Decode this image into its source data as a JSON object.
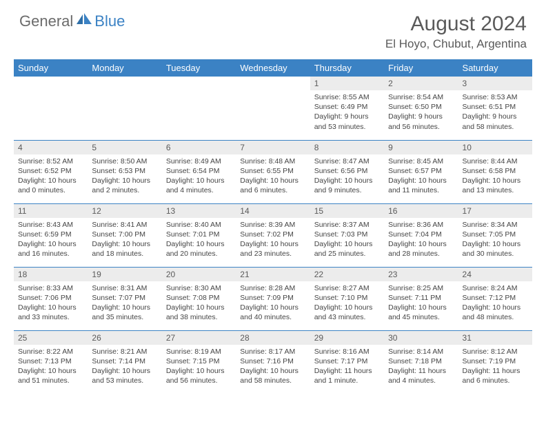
{
  "brand": {
    "name_gray": "General",
    "name_blue": "Blue"
  },
  "title": "August 2024",
  "location": "El Hoyo, Chubut, Argentina",
  "weekdays": [
    "Sunday",
    "Monday",
    "Tuesday",
    "Wednesday",
    "Thursday",
    "Friday",
    "Saturday"
  ],
  "header_bg": "#3b82c4",
  "daynum_bg": "#ececec",
  "weeks": [
    [
      {
        "n": "",
        "sr": "",
        "ss": "",
        "dl": ""
      },
      {
        "n": "",
        "sr": "",
        "ss": "",
        "dl": ""
      },
      {
        "n": "",
        "sr": "",
        "ss": "",
        "dl": ""
      },
      {
        "n": "",
        "sr": "",
        "ss": "",
        "dl": ""
      },
      {
        "n": "1",
        "sr": "Sunrise: 8:55 AM",
        "ss": "Sunset: 6:49 PM",
        "dl": "Daylight: 9 hours and 53 minutes."
      },
      {
        "n": "2",
        "sr": "Sunrise: 8:54 AM",
        "ss": "Sunset: 6:50 PM",
        "dl": "Daylight: 9 hours and 56 minutes."
      },
      {
        "n": "3",
        "sr": "Sunrise: 8:53 AM",
        "ss": "Sunset: 6:51 PM",
        "dl": "Daylight: 9 hours and 58 minutes."
      }
    ],
    [
      {
        "n": "4",
        "sr": "Sunrise: 8:52 AM",
        "ss": "Sunset: 6:52 PM",
        "dl": "Daylight: 10 hours and 0 minutes."
      },
      {
        "n": "5",
        "sr": "Sunrise: 8:50 AM",
        "ss": "Sunset: 6:53 PM",
        "dl": "Daylight: 10 hours and 2 minutes."
      },
      {
        "n": "6",
        "sr": "Sunrise: 8:49 AM",
        "ss": "Sunset: 6:54 PM",
        "dl": "Daylight: 10 hours and 4 minutes."
      },
      {
        "n": "7",
        "sr": "Sunrise: 8:48 AM",
        "ss": "Sunset: 6:55 PM",
        "dl": "Daylight: 10 hours and 6 minutes."
      },
      {
        "n": "8",
        "sr": "Sunrise: 8:47 AM",
        "ss": "Sunset: 6:56 PM",
        "dl": "Daylight: 10 hours and 9 minutes."
      },
      {
        "n": "9",
        "sr": "Sunrise: 8:45 AM",
        "ss": "Sunset: 6:57 PM",
        "dl": "Daylight: 10 hours and 11 minutes."
      },
      {
        "n": "10",
        "sr": "Sunrise: 8:44 AM",
        "ss": "Sunset: 6:58 PM",
        "dl": "Daylight: 10 hours and 13 minutes."
      }
    ],
    [
      {
        "n": "11",
        "sr": "Sunrise: 8:43 AM",
        "ss": "Sunset: 6:59 PM",
        "dl": "Daylight: 10 hours and 16 minutes."
      },
      {
        "n": "12",
        "sr": "Sunrise: 8:41 AM",
        "ss": "Sunset: 7:00 PM",
        "dl": "Daylight: 10 hours and 18 minutes."
      },
      {
        "n": "13",
        "sr": "Sunrise: 8:40 AM",
        "ss": "Sunset: 7:01 PM",
        "dl": "Daylight: 10 hours and 20 minutes."
      },
      {
        "n": "14",
        "sr": "Sunrise: 8:39 AM",
        "ss": "Sunset: 7:02 PM",
        "dl": "Daylight: 10 hours and 23 minutes."
      },
      {
        "n": "15",
        "sr": "Sunrise: 8:37 AM",
        "ss": "Sunset: 7:03 PM",
        "dl": "Daylight: 10 hours and 25 minutes."
      },
      {
        "n": "16",
        "sr": "Sunrise: 8:36 AM",
        "ss": "Sunset: 7:04 PM",
        "dl": "Daylight: 10 hours and 28 minutes."
      },
      {
        "n": "17",
        "sr": "Sunrise: 8:34 AM",
        "ss": "Sunset: 7:05 PM",
        "dl": "Daylight: 10 hours and 30 minutes."
      }
    ],
    [
      {
        "n": "18",
        "sr": "Sunrise: 8:33 AM",
        "ss": "Sunset: 7:06 PM",
        "dl": "Daylight: 10 hours and 33 minutes."
      },
      {
        "n": "19",
        "sr": "Sunrise: 8:31 AM",
        "ss": "Sunset: 7:07 PM",
        "dl": "Daylight: 10 hours and 35 minutes."
      },
      {
        "n": "20",
        "sr": "Sunrise: 8:30 AM",
        "ss": "Sunset: 7:08 PM",
        "dl": "Daylight: 10 hours and 38 minutes."
      },
      {
        "n": "21",
        "sr": "Sunrise: 8:28 AM",
        "ss": "Sunset: 7:09 PM",
        "dl": "Daylight: 10 hours and 40 minutes."
      },
      {
        "n": "22",
        "sr": "Sunrise: 8:27 AM",
        "ss": "Sunset: 7:10 PM",
        "dl": "Daylight: 10 hours and 43 minutes."
      },
      {
        "n": "23",
        "sr": "Sunrise: 8:25 AM",
        "ss": "Sunset: 7:11 PM",
        "dl": "Daylight: 10 hours and 45 minutes."
      },
      {
        "n": "24",
        "sr": "Sunrise: 8:24 AM",
        "ss": "Sunset: 7:12 PM",
        "dl": "Daylight: 10 hours and 48 minutes."
      }
    ],
    [
      {
        "n": "25",
        "sr": "Sunrise: 8:22 AM",
        "ss": "Sunset: 7:13 PM",
        "dl": "Daylight: 10 hours and 51 minutes."
      },
      {
        "n": "26",
        "sr": "Sunrise: 8:21 AM",
        "ss": "Sunset: 7:14 PM",
        "dl": "Daylight: 10 hours and 53 minutes."
      },
      {
        "n": "27",
        "sr": "Sunrise: 8:19 AM",
        "ss": "Sunset: 7:15 PM",
        "dl": "Daylight: 10 hours and 56 minutes."
      },
      {
        "n": "28",
        "sr": "Sunrise: 8:17 AM",
        "ss": "Sunset: 7:16 PM",
        "dl": "Daylight: 10 hours and 58 minutes."
      },
      {
        "n": "29",
        "sr": "Sunrise: 8:16 AM",
        "ss": "Sunset: 7:17 PM",
        "dl": "Daylight: 11 hours and 1 minute."
      },
      {
        "n": "30",
        "sr": "Sunrise: 8:14 AM",
        "ss": "Sunset: 7:18 PM",
        "dl": "Daylight: 11 hours and 4 minutes."
      },
      {
        "n": "31",
        "sr": "Sunrise: 8:12 AM",
        "ss": "Sunset: 7:19 PM",
        "dl": "Daylight: 11 hours and 6 minutes."
      }
    ]
  ]
}
